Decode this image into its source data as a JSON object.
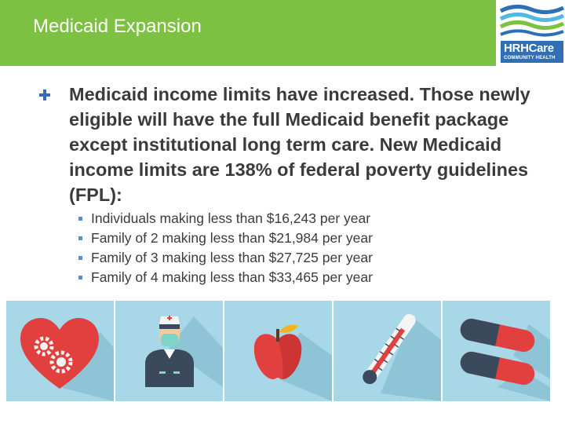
{
  "slide": {
    "title": "Medicaid Expansion",
    "main_text": "Medicaid income limits have increased. Those newly eligible will have the full Medicaid benefit package except institutional long term care.  New Medicaid income limits are 138% of federal poverty guidelines (FPL):",
    "bullets": [
      "Individuals making less than $16,243 per year",
      "Family of 2 making less than $21,984 per year",
      "Family of 3 making less than $27,725 per year",
      "Family of 4 making less than $33,465 per year"
    ]
  },
  "logo": {
    "main": "HRHCare",
    "sub": "COMMUNITY HEALTH"
  },
  "icons": [
    "heart-gears-icon",
    "nurse-icon",
    "apple-icon",
    "thermometer-icon",
    "pills-icon"
  ],
  "colors": {
    "header": "#7dc142",
    "tile": "#a8d7e8",
    "bullet": "#2f6fb5",
    "text": "#3b3b3b"
  }
}
